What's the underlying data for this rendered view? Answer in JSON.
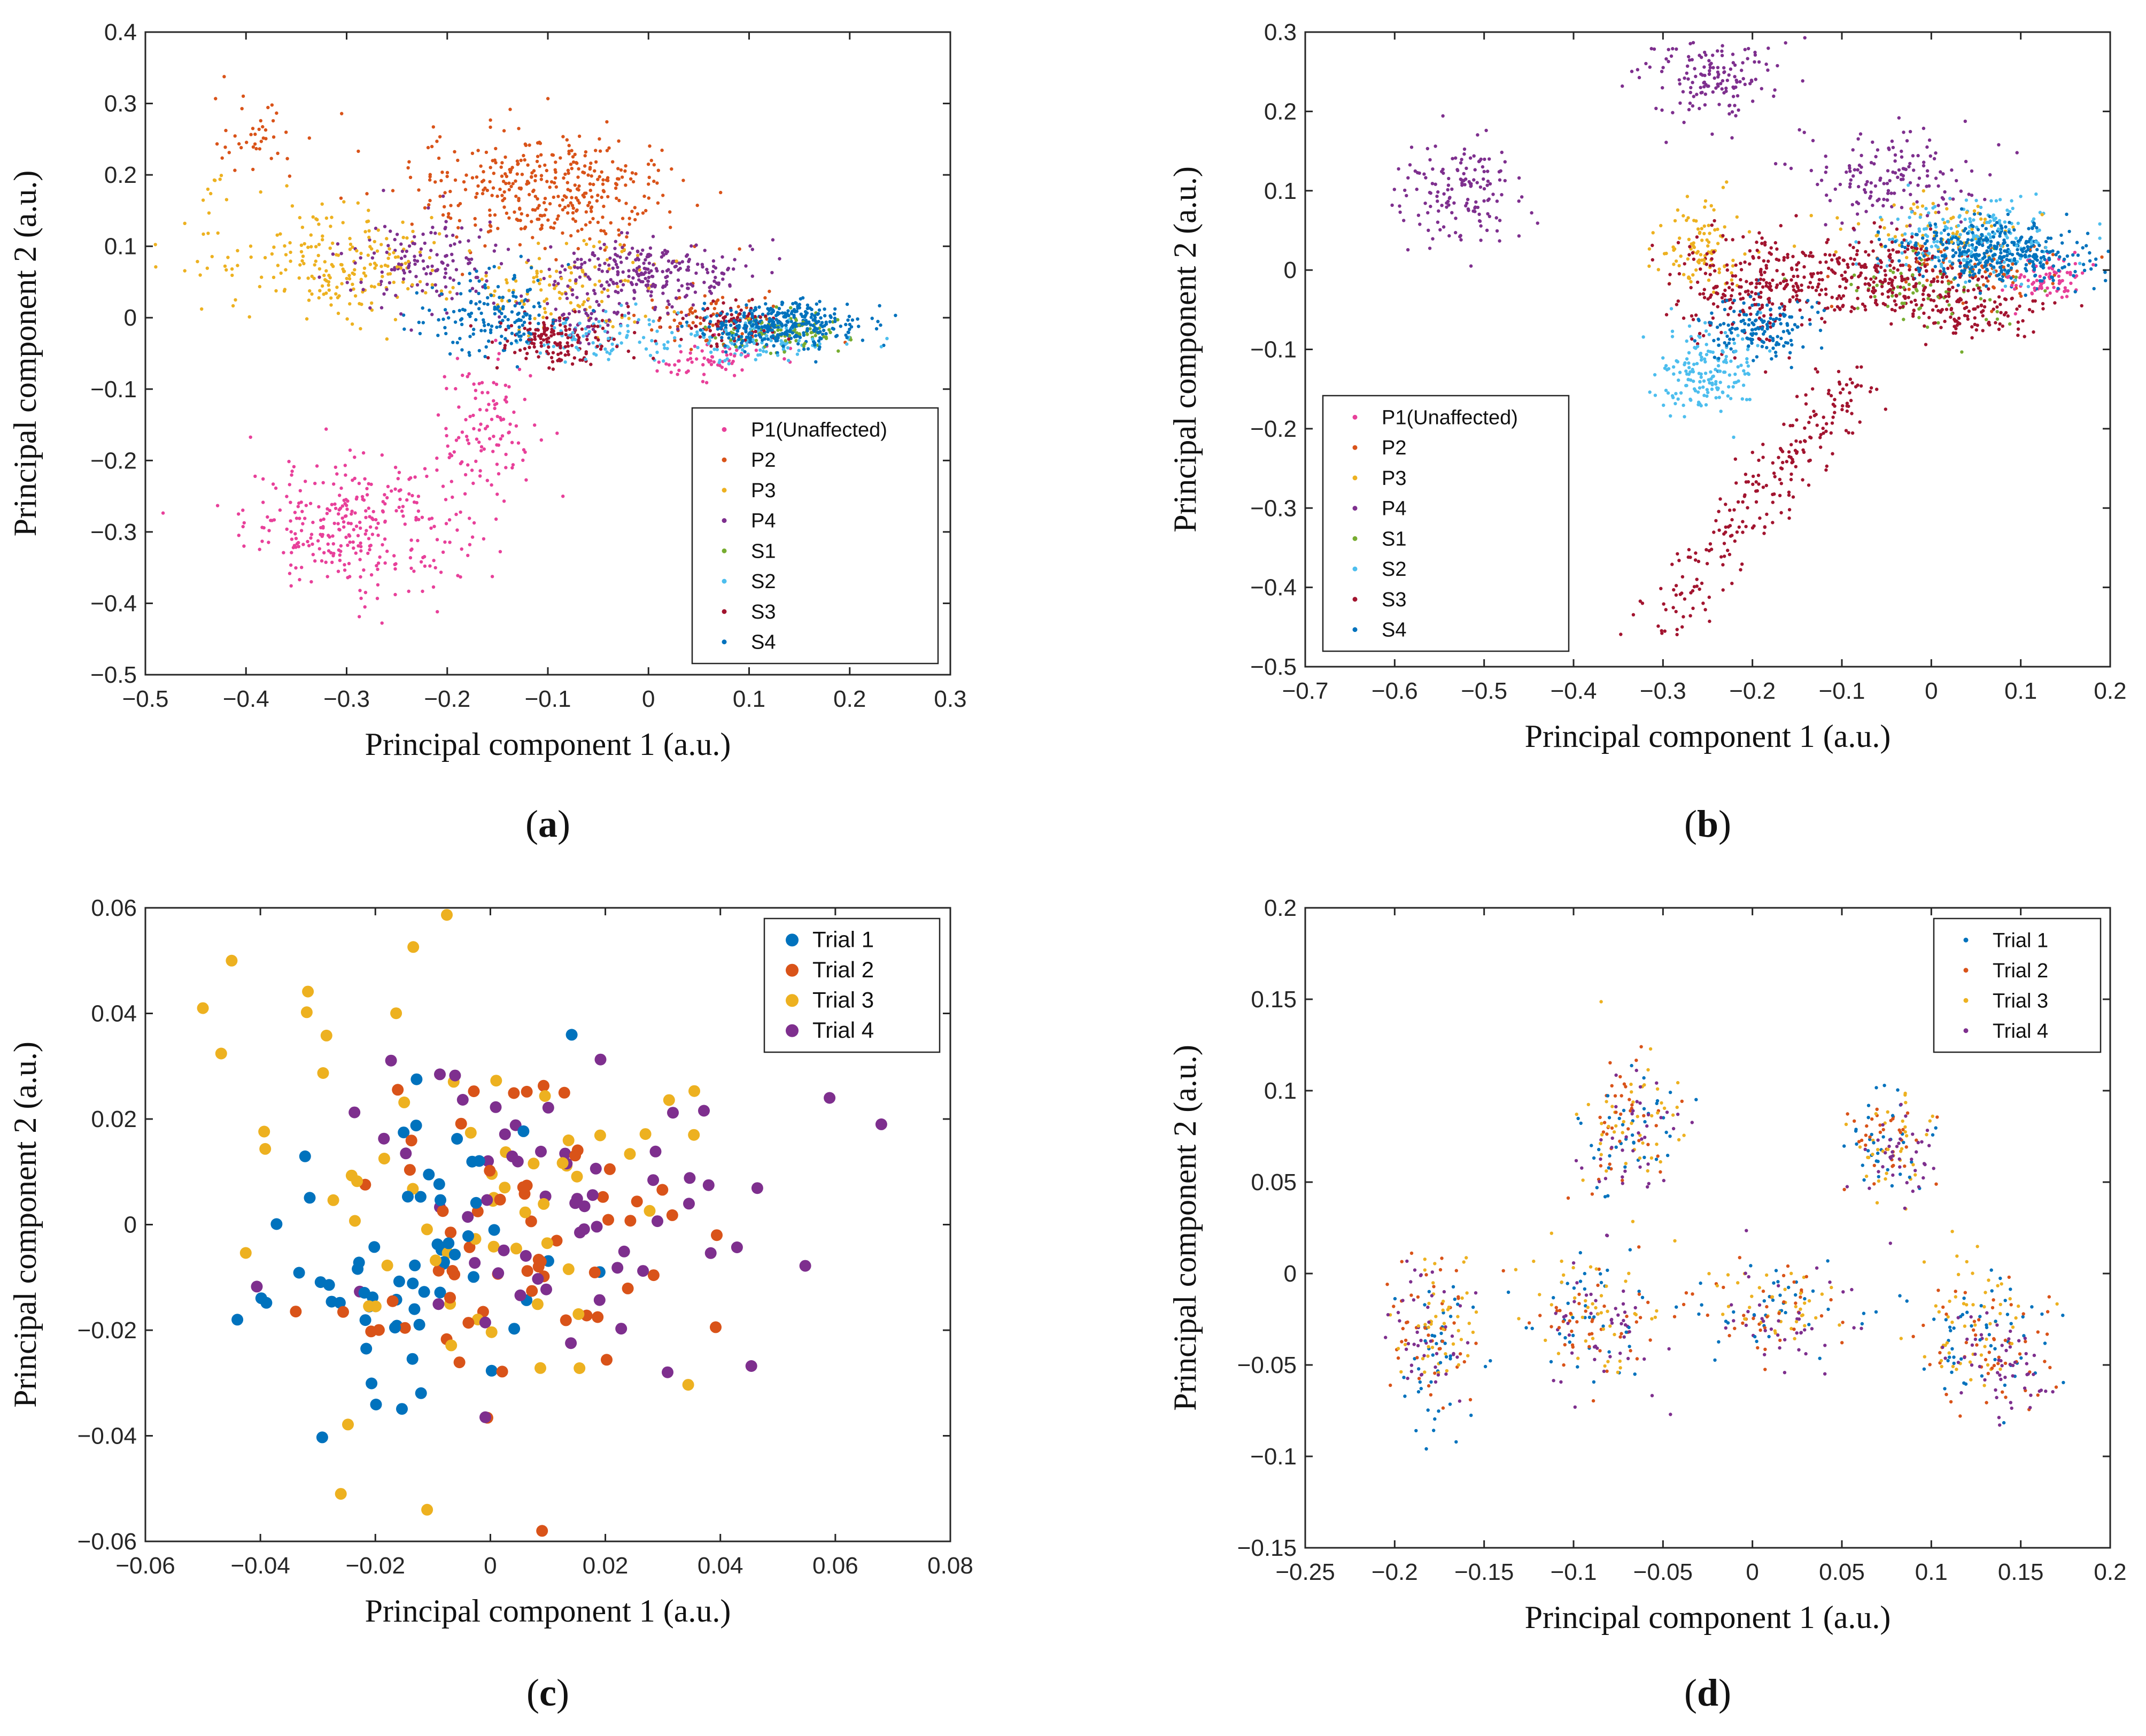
{
  "chart_data": [
    {
      "type": "scatter",
      "panel": "(a)",
      "panel_label": "a",
      "xlabel": "Principal component 1 (a.u.)",
      "ylabel": "Principal component 2 (a.u.)",
      "xlim": [
        -0.5,
        0.3
      ],
      "ylim": [
        -0.5,
        0.4
      ],
      "xticks": [
        -0.5,
        -0.4,
        -0.3,
        -0.2,
        -0.1,
        0,
        0.1,
        0.2,
        0.3
      ],
      "yticks": [
        -0.5,
        -0.4,
        -0.3,
        -0.2,
        -0.1,
        0,
        0.1,
        0.2,
        0.3,
        0.4
      ],
      "grid": false,
      "legend_position": "bottom-right",
      "marker": "small-dot",
      "series": [
        {
          "name": "P1(Unaffected)",
          "color": "#E8409A",
          "clusters": [
            {
              "cx": -0.29,
              "cy": -0.29,
              "sx": 0.055,
              "sy": 0.045,
              "n": 320
            },
            {
              "cx": -0.16,
              "cy": -0.16,
              "sx": 0.025,
              "sy": 0.05,
              "n": 110
            },
            {
              "cx": 0.06,
              "cy": -0.06,
              "sx": 0.03,
              "sy": 0.015,
              "n": 60
            }
          ]
        },
        {
          "name": "P2",
          "color": "#D95319",
          "clusters": [
            {
              "cx": -0.1,
              "cy": 0.18,
              "sx": 0.065,
              "sy": 0.04,
              "n": 380
            },
            {
              "cx": -0.39,
              "cy": 0.25,
              "sx": 0.02,
              "sy": 0.03,
              "n": 40
            },
            {
              "cx": 0.06,
              "cy": 0.0,
              "sx": 0.04,
              "sy": 0.02,
              "n": 60
            }
          ]
        },
        {
          "name": "P3",
          "color": "#EDB120",
          "clusters": [
            {
              "cx": -0.3,
              "cy": 0.08,
              "sx": 0.05,
              "sy": 0.04,
              "n": 200
            },
            {
              "cx": -0.08,
              "cy": 0.04,
              "sx": 0.05,
              "sy": 0.03,
              "n": 120
            },
            {
              "cx": -0.44,
              "cy": 0.1,
              "sx": 0.02,
              "sy": 0.05,
              "n": 25
            }
          ]
        },
        {
          "name": "P4",
          "color": "#7E2F8E",
          "clusters": [
            {
              "cx": -0.22,
              "cy": 0.08,
              "sx": 0.04,
              "sy": 0.03,
              "n": 140
            },
            {
              "cx": 0.0,
              "cy": 0.06,
              "sx": 0.05,
              "sy": 0.025,
              "n": 260
            },
            {
              "cx": -0.06,
              "cy": 0.0,
              "sx": 0.015,
              "sy": 0.02,
              "n": 40
            }
          ]
        },
        {
          "name": "S1",
          "color": "#77AC30",
          "clusters": [
            {
              "cx": 0.13,
              "cy": -0.02,
              "sx": 0.035,
              "sy": 0.012,
              "n": 100
            }
          ]
        },
        {
          "name": "S2",
          "color": "#4DBEEE",
          "clusters": [
            {
              "cx": -0.05,
              "cy": -0.03,
              "sx": 0.04,
              "sy": 0.02,
              "n": 80
            },
            {
              "cx": 0.1,
              "cy": -0.03,
              "sx": 0.04,
              "sy": 0.015,
              "n": 110
            }
          ]
        },
        {
          "name": "S3",
          "color": "#A2142F",
          "clusters": [
            {
              "cx": -0.09,
              "cy": -0.03,
              "sx": 0.03,
              "sy": 0.02,
              "n": 150
            },
            {
              "cx": 0.08,
              "cy": -0.01,
              "sx": 0.03,
              "sy": 0.015,
              "n": 90
            }
          ]
        },
        {
          "name": "S4",
          "color": "#0072BD",
          "clusters": [
            {
              "cx": -0.15,
              "cy": 0.0,
              "sx": 0.035,
              "sy": 0.03,
              "n": 160
            },
            {
              "cx": 0.13,
              "cy": -0.01,
              "sx": 0.04,
              "sy": 0.015,
              "n": 360
            }
          ]
        }
      ]
    },
    {
      "type": "scatter",
      "panel": "(b)",
      "panel_label": "b",
      "xlabel": "Principal component 1 (a.u.)",
      "ylabel": "Principal component 2 (a.u.)",
      "xlim": [
        -0.7,
        0.2
      ],
      "ylim": [
        -0.5,
        0.3
      ],
      "xticks": [
        -0.7,
        -0.6,
        -0.5,
        -0.4,
        -0.3,
        -0.2,
        -0.1,
        0,
        0.1,
        0.2
      ],
      "yticks": [
        -0.5,
        -0.4,
        -0.3,
        -0.2,
        -0.1,
        0,
        0.1,
        0.2,
        0.3
      ],
      "grid": false,
      "legend_position": "bottom-left",
      "marker": "small-dot",
      "series": [
        {
          "name": "P1(Unaffected)",
          "color": "#E8409A",
          "clusters": [
            {
              "cx": 0.13,
              "cy": -0.01,
              "sx": 0.02,
              "sy": 0.015,
              "n": 80
            }
          ]
        },
        {
          "name": "P2",
          "color": "#D95319",
          "clusters": [
            {
              "cx": 0.05,
              "cy": 0.0,
              "sx": 0.05,
              "sy": 0.02,
              "n": 80
            }
          ]
        },
        {
          "name": "P3",
          "color": "#EDB120",
          "clusters": [
            {
              "cx": -0.26,
              "cy": 0.03,
              "sx": 0.025,
              "sy": 0.03,
              "n": 100
            },
            {
              "cx": 0.0,
              "cy": 0.05,
              "sx": 0.05,
              "sy": 0.02,
              "n": 80
            }
          ]
        },
        {
          "name": "P4",
          "color": "#7E2F8E",
          "clusters": [
            {
              "cx": -0.53,
              "cy": 0.1,
              "sx": 0.035,
              "sy": 0.03,
              "n": 150
            },
            {
              "cx": -0.25,
              "cy": 0.24,
              "sx": 0.04,
              "sy": 0.025,
              "n": 150
            },
            {
              "cx": -0.05,
              "cy": 0.12,
              "sx": 0.05,
              "sy": 0.03,
              "n": 150
            }
          ]
        },
        {
          "name": "S1",
          "color": "#77AC30",
          "clusters": [
            {
              "cx": 0.0,
              "cy": -0.03,
              "sx": 0.05,
              "sy": 0.02,
              "n": 70
            }
          ]
        },
        {
          "name": "S2",
          "color": "#4DBEEE",
          "clusters": [
            {
              "cx": -0.25,
              "cy": -0.13,
              "sx": 0.03,
              "sy": 0.03,
              "n": 170
            },
            {
              "cx": 0.05,
              "cy": 0.04,
              "sx": 0.05,
              "sy": 0.025,
              "n": 200
            }
          ]
        },
        {
          "name": "S3",
          "color": "#A2142F",
          "clusters": [
            {
              "cx": -0.2,
              "cy": -0.02,
              "sx": 0.05,
              "sy": 0.035,
              "n": 260
            },
            {
              "cx": -0.05,
              "cy": -0.01,
              "sx": 0.05,
              "sy": 0.025,
              "n": 260
            },
            {
              "cx": 0.05,
              "cy": -0.05,
              "sx": 0.04,
              "sy": 0.015,
              "n": 100
            }
          ]
        },
        {
          "name": "S4",
          "color": "#0072BD",
          "clusters": [
            {
              "cx": -0.19,
              "cy": -0.07,
              "sx": 0.03,
              "sy": 0.02,
              "n": 150
            },
            {
              "cx": 0.07,
              "cy": 0.02,
              "sx": 0.05,
              "sy": 0.02,
              "n": 380
            }
          ]
        }
      ],
      "trails": [
        {
          "color": "#A2142F",
          "from": [
            -0.3,
            -0.44
          ],
          "to": [
            -0.08,
            -0.14
          ],
          "spread": 0.02,
          "n": 230
        }
      ]
    },
    {
      "type": "scatter",
      "panel": "(c)",
      "panel_label": "c",
      "xlabel": "Principal component 1 (a.u.)",
      "ylabel": "Principal component 2 (a.u.)",
      "xlim": [
        -0.06,
        0.08
      ],
      "ylim": [
        -0.06,
        0.06
      ],
      "xticks": [
        -0.06,
        -0.04,
        -0.02,
        0,
        0.02,
        0.04,
        0.06,
        0.08
      ],
      "yticks": [
        -0.06,
        -0.04,
        -0.02,
        0,
        0.02,
        0.04,
        0.06
      ],
      "grid": false,
      "legend_position": "top-right",
      "marker": "large-dot",
      "series": [
        {
          "name": "Trial 1",
          "color": "#0072BD",
          "clusters": [
            {
              "cx": -0.012,
              "cy": -0.005,
              "sx": 0.014,
              "sy": 0.016,
              "n": 62
            }
          ]
        },
        {
          "name": "Trial 2",
          "color": "#D95319",
          "clusters": [
            {
              "cx": 0.004,
              "cy": -0.006,
              "sx": 0.016,
              "sy": 0.018,
              "n": 62
            }
          ]
        },
        {
          "name": "Trial 3",
          "color": "#EDB120",
          "clusters": [
            {
              "cx": -0.004,
              "cy": 0.006,
              "sx": 0.02,
              "sy": 0.02,
              "n": 62
            }
          ]
        },
        {
          "name": "Trial 4",
          "color": "#7E2F8E",
          "clusters": [
            {
              "cx": 0.012,
              "cy": 0.0,
              "sx": 0.02,
              "sy": 0.016,
              "n": 62
            }
          ]
        }
      ],
      "points": [
        {
          "series": "Trial 3",
          "x": -0.045,
          "y": 0.05
        },
        {
          "series": "Trial 3",
          "x": -0.05,
          "y": 0.041
        },
        {
          "series": "Trial 4",
          "x": 0.068,
          "y": 0.019
        },
        {
          "series": "Trial 4",
          "x": 0.059,
          "y": 0.024
        },
        {
          "series": "Trial 1",
          "x": -0.044,
          "y": -0.018
        },
        {
          "series": "Trial 2",
          "x": 0.009,
          "y": -0.058
        },
        {
          "series": "Trial 3",
          "x": -0.011,
          "y": -0.054
        },
        {
          "series": "Trial 3",
          "x": -0.026,
          "y": -0.051
        }
      ]
    },
    {
      "type": "scatter",
      "panel": "(d)",
      "panel_label": "d",
      "xlabel": "Principal component 1 (a.u.)",
      "ylabel": "Principal component 2 (a.u.)",
      "xlim": [
        -0.25,
        0.2
      ],
      "ylim": [
        -0.15,
        0.2
      ],
      "xticks": [
        -0.25,
        -0.2,
        -0.15,
        -0.1,
        -0.05,
        0,
        0.05,
        0.1,
        0.15,
        0.2
      ],
      "yticks": [
        -0.15,
        -0.1,
        -0.05,
        0,
        0.05,
        0.1,
        0.15,
        0.2
      ],
      "grid": false,
      "legend_position": "top-right",
      "marker": "small-dot",
      "series": [
        {
          "name": "Trial 1",
          "color": "#0072BD",
          "clusters": [
            {
              "cx": -0.18,
              "cy": -0.05,
              "sx": 0.012,
              "sy": 0.025,
              "n": 45
            },
            {
              "cx": -0.09,
              "cy": -0.03,
              "sx": 0.02,
              "sy": 0.02,
              "n": 40
            },
            {
              "cx": -0.07,
              "cy": 0.08,
              "sx": 0.015,
              "sy": 0.02,
              "n": 40
            },
            {
              "cx": 0.02,
              "cy": -0.02,
              "sx": 0.025,
              "sy": 0.012,
              "n": 40
            },
            {
              "cx": 0.075,
              "cy": 0.07,
              "sx": 0.012,
              "sy": 0.013,
              "n": 35
            },
            {
              "cx": 0.13,
              "cy": -0.035,
              "sx": 0.018,
              "sy": 0.02,
              "n": 55
            }
          ]
        },
        {
          "name": "Trial 2",
          "color": "#D95319",
          "clusters": [
            {
              "cx": -0.18,
              "cy": -0.03,
              "sx": 0.012,
              "sy": 0.02,
              "n": 45
            },
            {
              "cx": -0.09,
              "cy": -0.03,
              "sx": 0.02,
              "sy": 0.02,
              "n": 45
            },
            {
              "cx": -0.07,
              "cy": 0.08,
              "sx": 0.015,
              "sy": 0.02,
              "n": 40
            },
            {
              "cx": 0.01,
              "cy": -0.02,
              "sx": 0.02,
              "sy": 0.012,
              "n": 40
            },
            {
              "cx": 0.075,
              "cy": 0.07,
              "sx": 0.012,
              "sy": 0.013,
              "n": 35
            },
            {
              "cx": 0.13,
              "cy": -0.04,
              "sx": 0.018,
              "sy": 0.018,
              "n": 55
            }
          ]
        },
        {
          "name": "Trial 3",
          "color": "#EDB120",
          "clusters": [
            {
              "cx": -0.175,
              "cy": -0.03,
              "sx": 0.012,
              "sy": 0.02,
              "n": 45
            },
            {
              "cx": -0.09,
              "cy": -0.025,
              "sx": 0.02,
              "sy": 0.02,
              "n": 45
            },
            {
              "cx": -0.07,
              "cy": 0.085,
              "sx": 0.016,
              "sy": 0.02,
              "n": 45
            },
            {
              "cx": 0.01,
              "cy": -0.015,
              "sx": 0.02,
              "sy": 0.015,
              "n": 40
            },
            {
              "cx": 0.075,
              "cy": 0.07,
              "sx": 0.012,
              "sy": 0.013,
              "n": 35
            },
            {
              "cx": 0.12,
              "cy": -0.03,
              "sx": 0.018,
              "sy": 0.02,
              "n": 55
            }
          ]
        },
        {
          "name": "Trial 4",
          "color": "#7E2F8E",
          "clusters": [
            {
              "cx": -0.18,
              "cy": -0.035,
              "sx": 0.012,
              "sy": 0.02,
              "n": 45
            },
            {
              "cx": -0.085,
              "cy": -0.035,
              "sx": 0.018,
              "sy": 0.02,
              "n": 45
            },
            {
              "cx": -0.07,
              "cy": 0.075,
              "sx": 0.015,
              "sy": 0.02,
              "n": 40
            },
            {
              "cx": 0.01,
              "cy": -0.025,
              "sx": 0.02,
              "sy": 0.013,
              "n": 40
            },
            {
              "cx": 0.08,
              "cy": 0.065,
              "sx": 0.012,
              "sy": 0.013,
              "n": 40
            },
            {
              "cx": 0.14,
              "cy": -0.05,
              "sx": 0.015,
              "sy": 0.015,
              "n": 55
            }
          ]
        }
      ]
    }
  ]
}
